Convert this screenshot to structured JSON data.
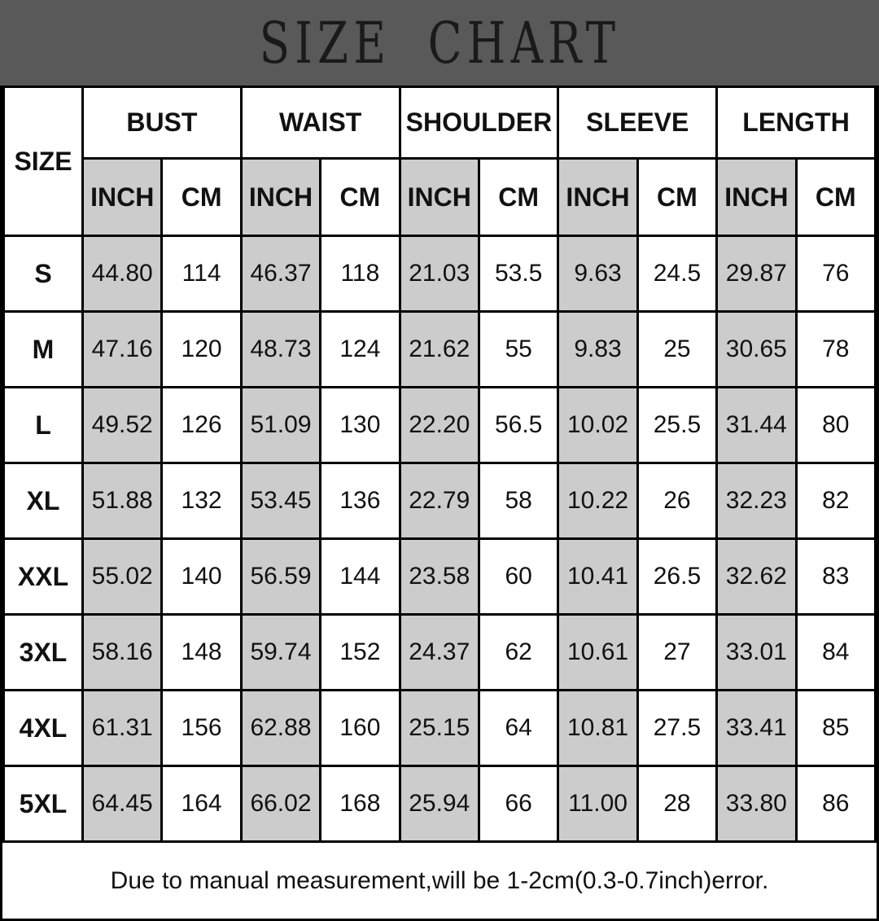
{
  "title": "SIZE CHART",
  "footer_note": "Due to manual measurement,will be 1-2cm(0.3-0.7inch)error.",
  "colors": {
    "banner_bg": "#595959",
    "inch_col_bg": "#cccccc",
    "cell_bg": "#ffffff",
    "border_color": "#000000"
  },
  "table": {
    "corner_header": "SIZE",
    "groups": [
      "BUST",
      "WAIST",
      "SHOULDER",
      "SLEEVE",
      "LENGTH"
    ],
    "unit_headers": [
      "INCH",
      "CM"
    ]
  },
  "chart_data": {
    "type": "table",
    "title": "SIZE CHART",
    "columns": [
      "SIZE",
      "BUST INCH",
      "BUST CM",
      "WAIST INCH",
      "WAIST CM",
      "SHOULDER INCH",
      "SHOULDER CM",
      "SLEEVE INCH",
      "SLEEVE CM",
      "LENGTH INCH",
      "LENGTH CM"
    ],
    "rows": [
      {
        "size": "S",
        "values": [
          "44.80",
          "114",
          "46.37",
          "118",
          "21.03",
          "53.5",
          "9.63",
          "24.5",
          "29.87",
          "76"
        ]
      },
      {
        "size": "M",
        "values": [
          "47.16",
          "120",
          "48.73",
          "124",
          "21.62",
          "55",
          "9.83",
          "25",
          "30.65",
          "78"
        ]
      },
      {
        "size": "L",
        "values": [
          "49.52",
          "126",
          "51.09",
          "130",
          "22.20",
          "56.5",
          "10.02",
          "25.5",
          "31.44",
          "80"
        ]
      },
      {
        "size": "XL",
        "values": [
          "51.88",
          "132",
          "53.45",
          "136",
          "22.79",
          "58",
          "10.22",
          "26",
          "32.23",
          "82"
        ]
      },
      {
        "size": "XXL",
        "values": [
          "55.02",
          "140",
          "56.59",
          "144",
          "23.58",
          "60",
          "10.41",
          "26.5",
          "32.62",
          "83"
        ]
      },
      {
        "size": "3XL",
        "values": [
          "58.16",
          "148",
          "59.74",
          "152",
          "24.37",
          "62",
          "10.61",
          "27",
          "33.01",
          "84"
        ]
      },
      {
        "size": "4XL",
        "values": [
          "61.31",
          "156",
          "62.88",
          "160",
          "25.15",
          "64",
          "10.81",
          "27.5",
          "33.41",
          "85"
        ]
      },
      {
        "size": "5XL",
        "values": [
          "64.45",
          "164",
          "66.02",
          "168",
          "25.94",
          "66",
          "11.00",
          "28",
          "33.80",
          "86"
        ]
      }
    ],
    "footnote": "Due to manual measurement,will be 1-2cm(0.3-0.7inch)error."
  }
}
